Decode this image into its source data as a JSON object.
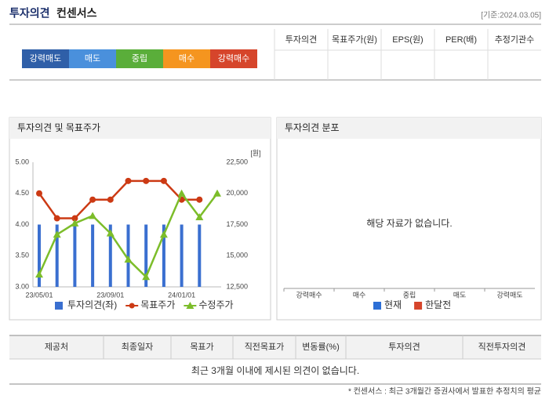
{
  "header": {
    "title_main": "투자의견",
    "title_sub": "컨센서스",
    "date": "[기준:2024.03.05]"
  },
  "rating_scale": {
    "labels": [
      "강력매도",
      "매도",
      "중립",
      "매수",
      "강력매수"
    ],
    "colors": [
      "#2f5fa8",
      "#4a90dc",
      "#5aae3a",
      "#f5951f",
      "#d6452b"
    ]
  },
  "consensus_table": {
    "columns": [
      "투자의견",
      "목표주가(원)",
      "EPS(원)",
      "PER(배)",
      "추정기관수"
    ]
  },
  "chart_data": [
    {
      "type": "combo",
      "title": "투자의견 및 목표주가",
      "categories": [
        "23/05/01",
        null,
        null,
        null,
        "23/09/01",
        null,
        null,
        null,
        "24/01/01",
        null,
        null
      ],
      "ylim": [
        3,
        5
      ],
      "yticks": [
        {
          "value": 5,
          "label": "5.00"
        },
        {
          "value": 4.5,
          "label": "4.50"
        },
        {
          "value": 4,
          "label": "4.00"
        },
        {
          "value": 3.5,
          "label": "3.50"
        },
        {
          "value": 3,
          "label": "3.00"
        }
      ],
      "y2lim": [
        12500,
        22500
      ],
      "y2ticks": [
        {
          "value": 22500,
          "label": "22,500"
        },
        {
          "value": 20000,
          "label": "20,000"
        },
        {
          "value": 17500,
          "label": "17,500"
        },
        {
          "value": 15000,
          "label": "15,000"
        },
        {
          "value": 12500,
          "label": "12,500"
        }
      ],
      "y2_unit": "[원]",
      "series": [
        {
          "name": "투자의견(좌)",
          "type": "bar",
          "color": "#3a6fd0",
          "values": [
            4,
            4,
            4,
            4,
            4,
            4,
            4,
            4,
            4,
            4,
            null
          ]
        },
        {
          "name": "목표주가",
          "type": "line",
          "axis": "y2",
          "color": "#cc3a14",
          "values": [
            20000,
            18000,
            18000,
            19500,
            19500,
            21000,
            21000,
            21000,
            19500,
            19500,
            null
          ]
        },
        {
          "name": "수정주가",
          "type": "line",
          "axis": "y2",
          "color": "#7cbd2a",
          "values": [
            13500,
            16700,
            17600,
            18200,
            16800,
            14700,
            13300,
            16700,
            20000,
            18100,
            20000
          ]
        }
      ]
    },
    {
      "type": "bar",
      "title": "투자의견 분포",
      "categories": [
        "강력매수",
        "매수",
        "중립",
        "매도",
        "강력매도"
      ],
      "series": [
        {
          "name": "현재",
          "color": "#2c6fd6"
        },
        {
          "name": "한달전",
          "color": "#d6452b"
        }
      ],
      "empty_message": "해당 자료가 없습니다."
    }
  ],
  "provider_table": {
    "columns": [
      "제공처",
      "최종일자",
      "목표가",
      "직전목표가",
      "변동률(%)",
      "투자의견",
      "직전투자의견"
    ],
    "empty_message": "최근 3개월 이내에 제시된 의견이 없습니다."
  },
  "footnote": "* 컨센서스 : 최근 3개월간 증권사에서 발표한 추정치의 평균"
}
